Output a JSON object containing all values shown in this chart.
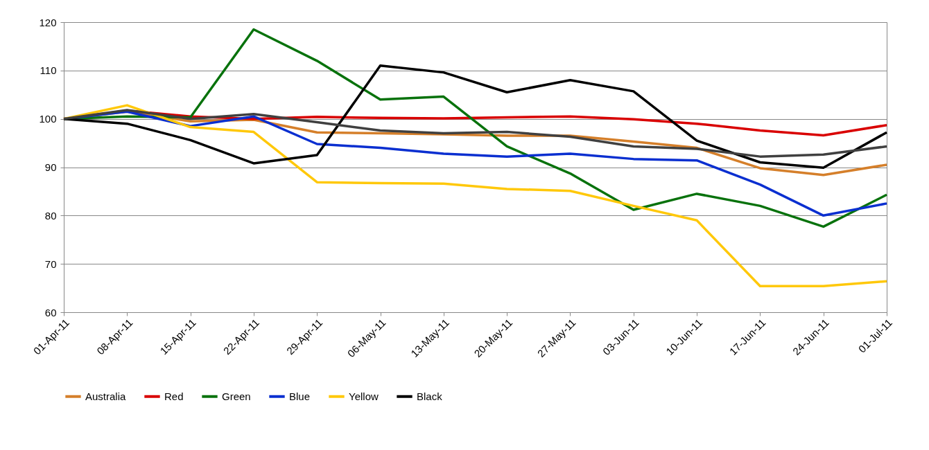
{
  "chart_data": {
    "type": "line",
    "categories": [
      "01-Apr-11",
      "08-Apr-11",
      "15-Apr-11",
      "22-Apr-11",
      "29-Apr-11",
      "06-May-11",
      "13-May-11",
      "20-May-11",
      "27-May-11",
      "03-Jun-11",
      "10-Jun-11",
      "17-Jun-11",
      "24-Jun-11",
      "01-Jul-11"
    ],
    "series": [
      {
        "name": "Australia",
        "color": "#d57f2a",
        "values": [
          100,
          101.5,
          99.5,
          99.8,
          97.2,
          97.0,
          96.8,
          96.5,
          96.5,
          95.3,
          94.0,
          89.8,
          88.4,
          90.5
        ]
      },
      {
        "name": "Red",
        "color": "#d90000",
        "values": [
          100,
          101.7,
          100.5,
          100.0,
          100.4,
          100.2,
          100.1,
          100.3,
          100.5,
          99.9,
          99.0,
          97.6,
          96.6,
          98.7
        ]
      },
      {
        "name": "Green",
        "color": "#08720c",
        "values": [
          100,
          100.5,
          100.3,
          118.5,
          112.0,
          104.0,
          104.6,
          94.3,
          88.7,
          81.2,
          84.5,
          82.0,
          77.7,
          84.3
        ]
      },
      {
        "name": "Blue",
        "color": "#0a2fd0",
        "values": [
          100,
          101.5,
          98.5,
          100.5,
          94.8,
          94.0,
          92.8,
          92.2,
          92.8,
          91.7,
          91.4,
          86.4,
          80.0,
          82.5
        ]
      },
      {
        "name": "Yellow",
        "color": "#ffc80a",
        "values": [
          100,
          102.8,
          98.3,
          97.3,
          86.9,
          86.7,
          86.6,
          85.5,
          85.1,
          82.0,
          79.0,
          65.4,
          65.4,
          66.4
        ]
      },
      {
        "name": "Black",
        "color": "#000000",
        "values": [
          100,
          99.0,
          95.6,
          90.8,
          92.5,
          111.0,
          109.6,
          105.5,
          108.0,
          105.7,
          95.5,
          91.0,
          89.9,
          97.2
        ]
      },
      {
        "color": "#404040",
        "values": [
          100,
          101.8,
          100.0,
          101.0,
          99.3,
          97.6,
          97.0,
          97.3,
          96.3,
          94.3,
          93.8,
          92.2,
          92.6,
          94.3
        ]
      }
    ],
    "ylim": [
      60,
      120
    ],
    "yticks": [
      60,
      70,
      80,
      90,
      100,
      110,
      120
    ],
    "grid": "y",
    "legend": "bottom",
    "line_style": "solid",
    "marker": "none"
  }
}
